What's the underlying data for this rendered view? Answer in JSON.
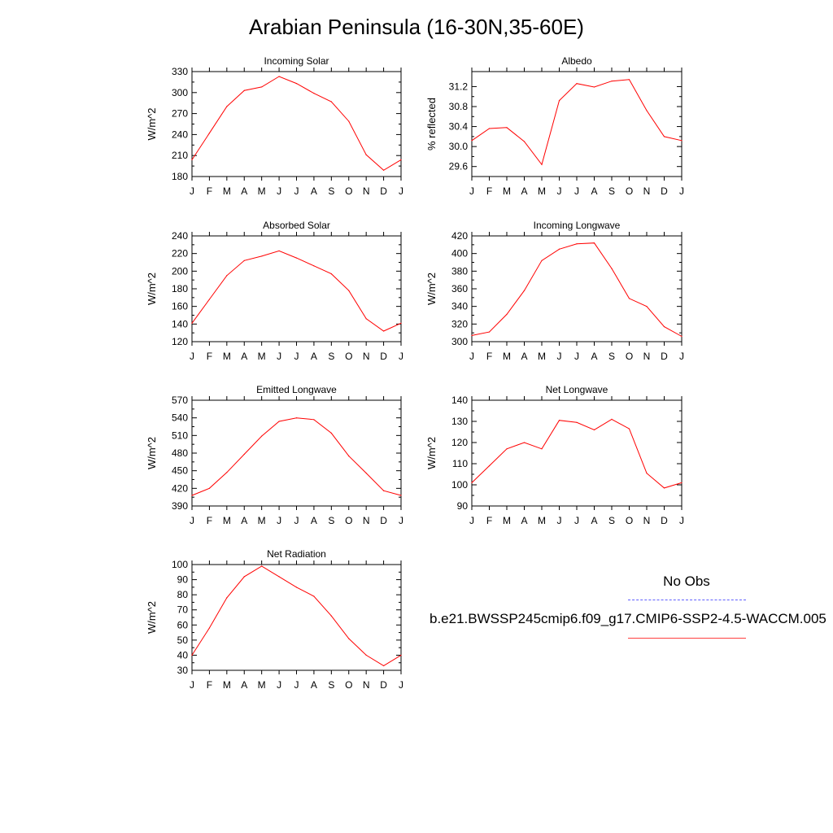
{
  "title": "Arabian Peninsula (16-30N,35-60E)",
  "month_labels": [
    "J",
    "F",
    "M",
    "A",
    "M",
    "J",
    "J",
    "A",
    "S",
    "O",
    "N",
    "D",
    "J"
  ],
  "colors": {
    "model_line": "#ff0000",
    "obs_line": "#6060ff",
    "axis": "#000000"
  },
  "legend": {
    "obs_label": "No Obs",
    "model_label": "b.e21.BWSSP245cmip6.f09_g17.CMIP6-SSP2-4.5-WACCM.005"
  },
  "chart_data": [
    {
      "type": "line",
      "title": "Incoming Solar",
      "ylabel": "W/m^2",
      "ylim": [
        180,
        330
      ],
      "yticks": [
        180,
        210,
        240,
        270,
        300,
        330
      ],
      "ytick_labels": [
        "180",
        "210",
        "240",
        "270",
        "300",
        "330"
      ],
      "x": [
        "J",
        "F",
        "M",
        "A",
        "M",
        "J",
        "J",
        "A",
        "S",
        "O",
        "N",
        "D",
        "J"
      ],
      "series": [
        {
          "values": [
            204,
            242,
            280,
            303,
            308,
            323,
            313,
            299,
            287,
            259,
            211,
            189,
            204
          ]
        }
      ]
    },
    {
      "type": "line",
      "title": "Albedo",
      "ylabel": "% reflected",
      "ylim": [
        29.4,
        31.5
      ],
      "yticks": [
        29.6,
        30.0,
        30.4,
        30.8,
        31.2
      ],
      "ytick_labels": [
        "29.6",
        "30.0",
        "30.4",
        "30.8",
        "31.2"
      ],
      "x": [
        "J",
        "F",
        "M",
        "A",
        "M",
        "J",
        "J",
        "A",
        "S",
        "O",
        "N",
        "D",
        "J"
      ],
      "series": [
        {
          "values": [
            30.12,
            30.36,
            30.38,
            30.1,
            29.64,
            30.92,
            31.26,
            31.19,
            31.31,
            31.34,
            30.72,
            30.2,
            30.12
          ]
        }
      ]
    },
    {
      "type": "line",
      "title": "Absorbed Solar",
      "ylabel": "W/m^2",
      "ylim": [
        120,
        240
      ],
      "yticks": [
        120,
        140,
        160,
        180,
        200,
        220,
        240
      ],
      "ytick_labels": [
        "120",
        "140",
        "160",
        "180",
        "200",
        "220",
        "240"
      ],
      "x": [
        "J",
        "F",
        "M",
        "A",
        "M",
        "J",
        "J",
        "A",
        "S",
        "O",
        "N",
        "D",
        "J"
      ],
      "series": [
        {
          "values": [
            141,
            168,
            195,
            212,
            217,
            223,
            215,
            206,
            197,
            178,
            146,
            132,
            141
          ]
        }
      ]
    },
    {
      "type": "line",
      "title": "Incoming Longwave",
      "ylabel": "W/m^2",
      "ylim": [
        300,
        420
      ],
      "yticks": [
        300,
        320,
        340,
        360,
        380,
        400,
        420
      ],
      "ytick_labels": [
        "300",
        "320",
        "340",
        "360",
        "380",
        "400",
        "420"
      ],
      "x": [
        "J",
        "F",
        "M",
        "A",
        "M",
        "J",
        "J",
        "A",
        "S",
        "O",
        "N",
        "D",
        "J"
      ],
      "series": [
        {
          "values": [
            307,
            311,
            331,
            358,
            392,
            405,
            411,
            412,
            383,
            349,
            340,
            317,
            306
          ]
        }
      ]
    },
    {
      "type": "line",
      "title": "Emitted Longwave",
      "ylabel": "W/m^2",
      "ylim": [
        390,
        570
      ],
      "yticks": [
        390,
        420,
        450,
        480,
        510,
        540,
        570
      ],
      "ytick_labels": [
        "390",
        "420",
        "450",
        "480",
        "510",
        "540",
        "570"
      ],
      "x": [
        "J",
        "F",
        "M",
        "A",
        "M",
        "J",
        "J",
        "A",
        "S",
        "O",
        "N",
        "D",
        "J"
      ],
      "series": [
        {
          "values": [
            408,
            420,
            447,
            478,
            509,
            534,
            540,
            537,
            514,
            475,
            446,
            416,
            408
          ]
        }
      ]
    },
    {
      "type": "line",
      "title": "Net Longwave",
      "ylabel": "W/m^2",
      "ylim": [
        90,
        140
      ],
      "yticks": [
        90,
        100,
        110,
        120,
        130,
        140
      ],
      "ytick_labels": [
        "90",
        "100",
        "110",
        "120",
        "130",
        "140"
      ],
      "x": [
        "J",
        "F",
        "M",
        "A",
        "M",
        "J",
        "J",
        "A",
        "S",
        "O",
        "N",
        "D",
        "J"
      ],
      "series": [
        {
          "values": [
            101,
            109,
            117,
            120,
            117,
            130.5,
            129.5,
            126,
            131,
            126.5,
            105.5,
            98.5,
            101
          ]
        }
      ]
    },
    {
      "type": "line",
      "title": "Net Radiation",
      "ylabel": "W/m^2",
      "ylim": [
        30,
        100
      ],
      "yticks": [
        30,
        40,
        50,
        60,
        70,
        80,
        90,
        100
      ],
      "ytick_labels": [
        "30",
        "40",
        "50",
        "60",
        "70",
        "80",
        "90",
        "100"
      ],
      "x": [
        "J",
        "F",
        "M",
        "A",
        "M",
        "J",
        "J",
        "A",
        "S",
        "O",
        "N",
        "D",
        "J"
      ],
      "series": [
        {
          "values": [
            40,
            58,
            78,
            92,
            99,
            92,
            85,
            79,
            66,
            51,
            40,
            33,
            40
          ]
        }
      ]
    }
  ]
}
